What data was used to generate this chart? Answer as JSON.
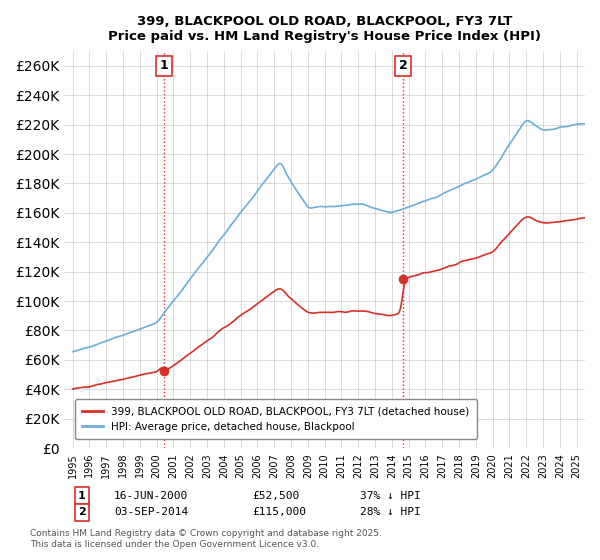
{
  "title": "399, BLACKPOOL OLD ROAD, BLACKPOOL, FY3 7LT",
  "subtitle": "Price paid vs. HM Land Registry's House Price Index (HPI)",
  "legend_line1": "399, BLACKPOOL OLD ROAD, BLACKPOOL, FY3 7LT (detached house)",
  "legend_line2": "HPI: Average price, detached house, Blackpool",
  "footnote": "Contains HM Land Registry data © Crown copyright and database right 2025.\nThis data is licensed under the Open Government Licence v3.0.",
  "sale1_label": "1",
  "sale1_date_str": "16-JUN-2000",
  "sale1_price": 52500,
  "sale1_hpi_pct": "37% ↓ HPI",
  "sale1_year": 2000.46,
  "sale2_label": "2",
  "sale2_date_str": "03-SEP-2014",
  "sale2_price": 115000,
  "sale2_hpi_pct": "28% ↓ HPI",
  "sale2_year": 2014.67,
  "hpi_color": "#6baed6",
  "price_color": "#d73027",
  "vline_color": "#d73027",
  "grid_color": "#cccccc",
  "background_color": "#ffffff",
  "ylim": [
    0,
    270000
  ],
  "xlim": [
    1994.5,
    2025.5
  ],
  "ytick_step": 20000
}
